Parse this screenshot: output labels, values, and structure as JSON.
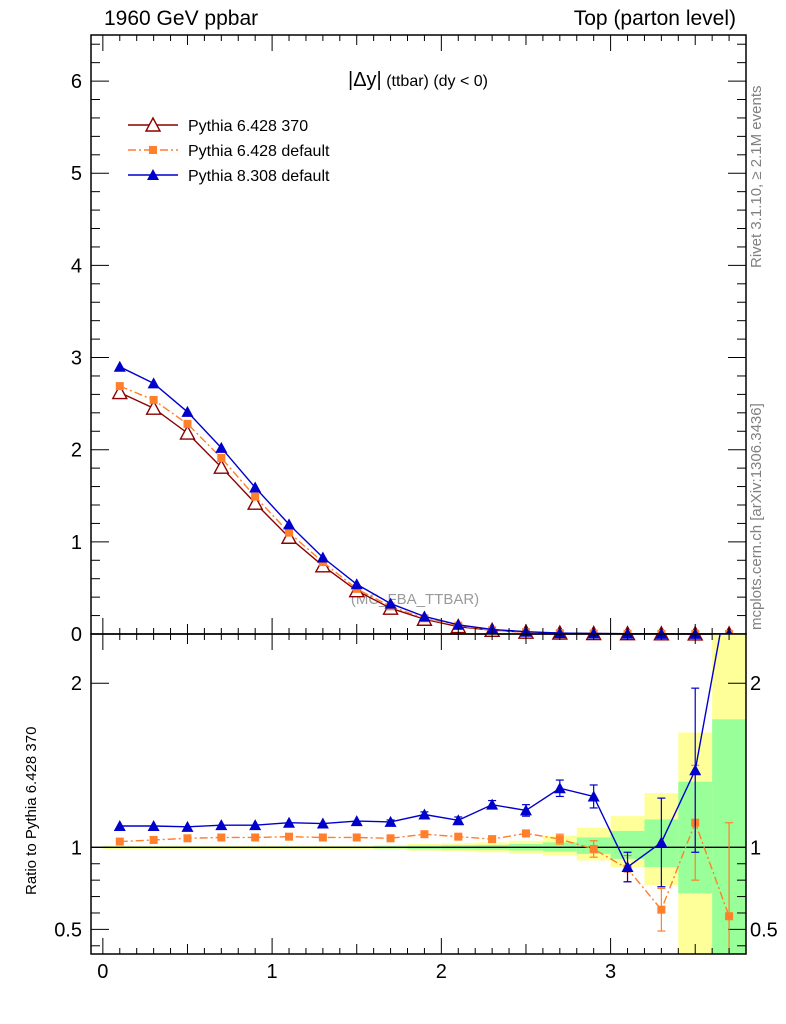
{
  "header": {
    "left": "1960 GeV ppbar",
    "right": "Top (parton level)"
  },
  "side_labels": {
    "rivet": "Rivet 3.1.10, ≥ 2.1M events",
    "mcplots": "mcplots.cern.ch [arXiv:1306.3436]"
  },
  "watermark": "(MC_FBA_TTBAR)",
  "plot_title": {
    "main": "|Δy|",
    "sub": " (ttbar) (dy < 0)"
  },
  "ratio_ylabel": "Ratio to Pythia 6.428 370",
  "colors": {
    "p6_370": "#8b0000",
    "p6_default": "#ff7f2a",
    "p8": "#0000cc",
    "band_yellow": "#ffff99",
    "band_green": "#99ff99"
  },
  "chart_data": [
    {
      "type": "line",
      "panel": "main",
      "x": [
        0.1,
        0.3,
        0.5,
        0.7,
        0.9,
        1.1,
        1.3,
        1.5,
        1.7,
        1.9,
        2.1,
        2.3,
        2.5,
        2.7,
        2.9,
        3.1,
        3.3,
        3.5,
        3.7
      ],
      "xlim": [
        -0.07,
        3.8
      ],
      "ylim": [
        0,
        6.5
      ],
      "xticks": [
        "0",
        "1",
        "2",
        "3"
      ],
      "yticks": [
        "0",
        "1",
        "2",
        "3",
        "4",
        "5",
        "6"
      ],
      "grid": false,
      "legend_position": "top-left",
      "series": [
        {
          "name": "Pythia 6.428 370",
          "values": [
            2.62,
            2.45,
            2.18,
            1.81,
            1.42,
            1.05,
            0.74,
            0.47,
            0.28,
            0.16,
            0.08,
            0.04,
            0.02,
            0.01,
            0.005,
            0.003,
            0.002,
            0.001,
            0.001
          ]
        },
        {
          "name": "Pythia 6.428 default",
          "values": [
            2.69,
            2.54,
            2.28,
            1.91,
            1.49,
            1.1,
            0.78,
            0.49,
            0.3,
            0.17,
            0.09,
            0.04,
            0.02,
            0.01,
            0.005,
            0.003,
            0.002,
            0.001,
            0.001
          ]
        },
        {
          "name": "Pythia 8.308 default",
          "values": [
            2.9,
            2.72,
            2.41,
            2.02,
            1.59,
            1.19,
            0.83,
            0.54,
            0.33,
            0.19,
            0.1,
            0.05,
            0.025,
            0.01,
            0.006,
            0.003,
            0.002,
            0.001,
            0.001
          ]
        }
      ]
    },
    {
      "type": "line",
      "panel": "ratio",
      "x": [
        0.1,
        0.3,
        0.5,
        0.7,
        0.9,
        1.1,
        1.3,
        1.5,
        1.7,
        1.9,
        2.1,
        2.3,
        2.5,
        2.7,
        2.9,
        3.1,
        3.3,
        3.5,
        3.7
      ],
      "xlim": [
        -0.07,
        3.8
      ],
      "ylim": [
        0.35,
        2.3
      ],
      "xticks": [
        "0",
        "1",
        "2",
        "3"
      ],
      "yticks": [
        "0.5",
        "1",
        "2"
      ],
      "ylabel": "Ratio to Pythia 6.428 370",
      "band_edges": [
        0,
        0.2,
        0.4,
        0.6,
        0.8,
        1.0,
        1.2,
        1.4,
        1.6,
        1.8,
        2.0,
        2.2,
        2.4,
        2.6,
        2.8,
        3.0,
        3.2,
        3.4,
        3.6,
        3.8
      ],
      "band_yellow": [
        [
          0.99,
          1.01
        ],
        [
          0.99,
          1.01
        ],
        [
          0.99,
          1.01
        ],
        [
          0.99,
          1.01
        ],
        [
          0.99,
          1.01
        ],
        [
          0.99,
          1.01
        ],
        [
          0.99,
          1.01
        ],
        [
          0.99,
          1.01
        ],
        [
          0.985,
          1.015
        ],
        [
          0.98,
          1.02
        ],
        [
          0.975,
          1.025
        ],
        [
          0.97,
          1.03
        ],
        [
          0.96,
          1.04
        ],
        [
          0.95,
          1.07
        ],
        [
          0.92,
          1.12
        ],
        [
          0.88,
          1.19
        ],
        [
          0.77,
          1.33
        ],
        [
          0.35,
          1.7
        ],
        [
          0.35,
          2.3
        ]
      ],
      "band_green": [
        [
          0.995,
          1.005
        ],
        [
          0.995,
          1.005
        ],
        [
          0.995,
          1.005
        ],
        [
          0.995,
          1.005
        ],
        [
          0.995,
          1.005
        ],
        [
          0.995,
          1.005
        ],
        [
          0.995,
          1.005
        ],
        [
          0.995,
          1.005
        ],
        [
          0.993,
          1.007
        ],
        [
          0.99,
          1.01
        ],
        [
          0.987,
          1.013
        ],
        [
          0.985,
          1.015
        ],
        [
          0.98,
          1.02
        ],
        [
          0.975,
          1.03
        ],
        [
          0.96,
          1.06
        ],
        [
          0.93,
          1.1
        ],
        [
          0.88,
          1.17
        ],
        [
          0.72,
          1.4
        ],
        [
          0.35,
          1.78
        ]
      ],
      "series": [
        {
          "name": "Pythia 6.428 default",
          "values": [
            1.035,
            1.045,
            1.055,
            1.06,
            1.06,
            1.065,
            1.06,
            1.06,
            1.055,
            1.08,
            1.065,
            1.05,
            1.085,
            1.05,
            0.99,
            0.87,
            0.62,
            1.15,
            0.58
          ],
          "err": [
            0.005,
            0.005,
            0.005,
            0.005,
            0.005,
            0.005,
            0.005,
            0.006,
            0.008,
            0.01,
            0.012,
            0.015,
            0.02,
            0.03,
            0.05,
            0.08,
            0.13,
            0.35,
            0.57
          ]
        },
        {
          "name": "Pythia 8.308 default",
          "values": [
            1.13,
            1.13,
            1.125,
            1.135,
            1.135,
            1.15,
            1.145,
            1.16,
            1.155,
            1.2,
            1.165,
            1.26,
            1.225,
            1.36,
            1.31,
            0.88,
            1.03,
            1.47,
            2.6
          ],
          "err": [
            0.005,
            0.005,
            0.005,
            0.006,
            0.006,
            0.007,
            0.008,
            0.009,
            0.012,
            0.016,
            0.02,
            0.025,
            0.035,
            0.05,
            0.07,
            0.09,
            0.27,
            0.5,
            0.0
          ]
        }
      ]
    }
  ]
}
